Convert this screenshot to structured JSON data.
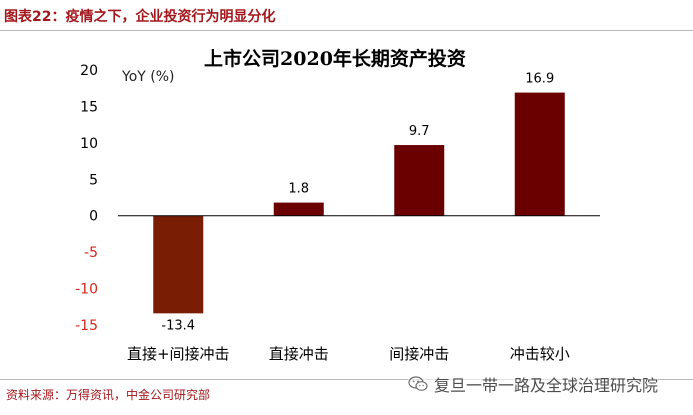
{
  "header": {
    "figure_title": "图表22：疫情之下，企业投资行为明显分化"
  },
  "footer": {
    "source": "资料来源：万得资讯，中金公司研究部",
    "watermark_text": "复旦一带一路及全球治理研究院",
    "watermark_icon": "wechat-icon"
  },
  "chart_data": {
    "type": "bar",
    "title": "上市公司2020年长期资产投资",
    "ylabel": "YoY (%)",
    "xlabel": "",
    "categories": [
      "直接+间接冲击",
      "直接冲击",
      "间接冲击",
      "冲击较小"
    ],
    "values": [
      -13.4,
      1.8,
      9.7,
      16.9
    ],
    "data_labels": [
      "-13.4",
      "1.8",
      "9.7",
      "16.9"
    ],
    "ylim": [
      -15,
      20
    ],
    "yticks": [
      20,
      15,
      10,
      5,
      0,
      -5,
      -10,
      -15
    ],
    "ytick_labels": [
      "20",
      "15",
      "10",
      "5",
      "0",
      "-5",
      "-10",
      "-15"
    ],
    "grid": false,
    "legend": "none",
    "colors": {
      "negative_bar": "#7a1d05",
      "positive_bar": "#6b0000",
      "negative_tick_label": "#d9261c",
      "positive_tick_label": "#000000"
    }
  }
}
